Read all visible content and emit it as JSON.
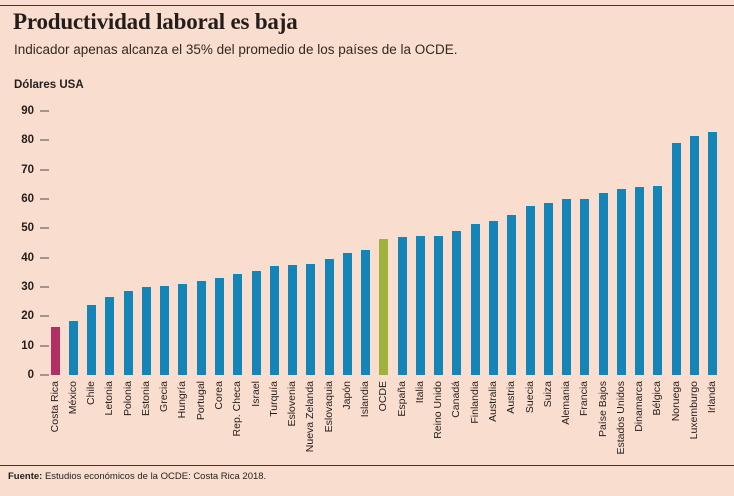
{
  "page": {
    "title": "Productividad laboral es baja",
    "subtitle": "Indicador apenas alcanza el 35% del promedio de los países de la OCDE.",
    "unit_label": "Dólares USA",
    "source_label": "Fuente:",
    "source_text": " Estudios económicos de la OCDE: Costa Rica 2018."
  },
  "colors": {
    "background": "#f9ddcf",
    "bar_default": "#1585b8",
    "bar_costa_rica": "#b13064",
    "bar_ocde": "#9db33e",
    "rule": "#46342b",
    "tick_dash": "#a5938a",
    "text": "#241e1a"
  },
  "chart_data": {
    "type": "bar",
    "title": "Productividad laboral es baja",
    "subtitle": "Indicador apenas alcanza el 35% del promedio de los países de la OCDE.",
    "xlabel": "",
    "ylabel": "Dólares USA",
    "ylim": [
      0,
      90
    ],
    "yticks": [
      0,
      10,
      20,
      30,
      40,
      50,
      60,
      70,
      80,
      90
    ],
    "grid": false,
    "legend": "none",
    "source": "Fuente: Estudios económicos de la OCDE: Costa Rica 2018.",
    "categories": [
      "Costa Rica",
      "México",
      "Chile",
      "Letonia",
      "Polonia",
      "Estonia",
      "Grecia",
      "Hungría",
      "Portugal",
      "Corea",
      "Rep. Checa",
      "Israel",
      "Turquía",
      "Eslovenia",
      "Nueva Zelanda",
      "Eslovaquia",
      "Japón",
      "Islandia",
      "OCDE",
      "España",
      "Italia",
      "Reino Unido",
      "Canadá",
      "Finlandia",
      "Australia",
      "Austria",
      "Suecia",
      "Suiza",
      "Alemania",
      "Francia",
      "Paíse Bajos",
      "Estados Unidos",
      "Dinamarca",
      "Bélgica",
      "Noruega",
      "Luxemburgo",
      "Irlanda"
    ],
    "values": [
      16.5,
      18.5,
      24,
      26.5,
      28.5,
      30,
      30.5,
      31,
      32,
      33,
      34.5,
      35.5,
      37,
      37.5,
      38,
      39.5,
      41.5,
      42.5,
      46.5,
      47,
      47.5,
      47.5,
      49,
      51.5,
      52.5,
      54.5,
      57.5,
      58.5,
      60,
      60,
      62,
      63.5,
      64,
      64.5,
      79,
      81.5,
      83
    ],
    "default_color": "#1585b8",
    "highlight_colors": {
      "Costa Rica": "#b13064",
      "OCDE": "#9db33e"
    }
  }
}
